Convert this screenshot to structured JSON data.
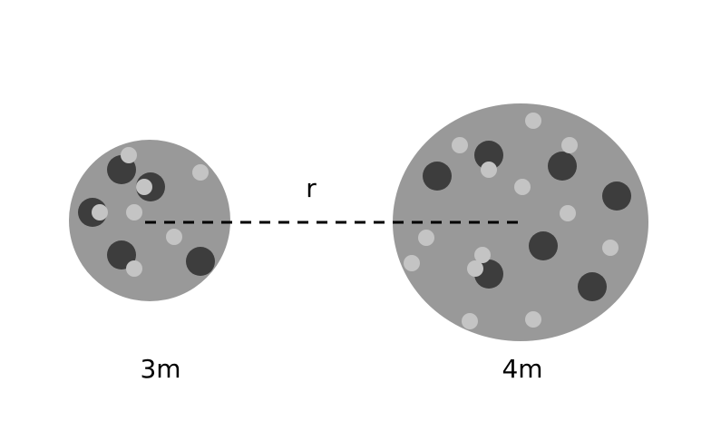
{
  "diagram": {
    "distance_label": "r",
    "left_sphere": {
      "mass_label": "3m"
    },
    "right_sphere": {
      "mass_label": "4m"
    }
  },
  "colors": {
    "background": "#ffffff",
    "sphere_fill": "#999999",
    "dark_dot": "#3d3d3d",
    "light_dot": "#c4c4c4",
    "line": "#000000",
    "text": "#000000"
  }
}
